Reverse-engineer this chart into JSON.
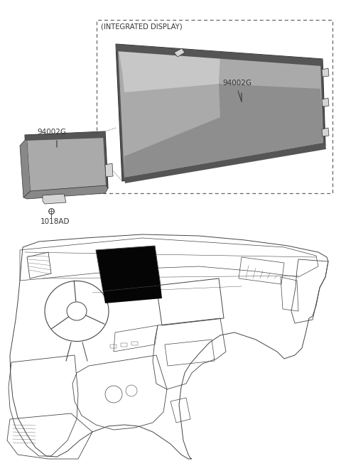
{
  "background_color": "#ffffff",
  "labels": {
    "integrated_display": "(INTEGRATED DISPLAY)",
    "part1": "94002G",
    "part2": "94002G",
    "part3": "1018AD"
  },
  "colors": {
    "outline": "#333333",
    "fill_light": "#d4d4d4",
    "fill_mid": "#aaaaaa",
    "fill_mid2": "#b8b8b8",
    "fill_dark": "#888888",
    "fill_darkest": "#555555",
    "dashed_box": "#666666",
    "black_screen": "#050505",
    "bg": "#ffffff",
    "white": "#ffffff",
    "line_art": "#444444"
  }
}
